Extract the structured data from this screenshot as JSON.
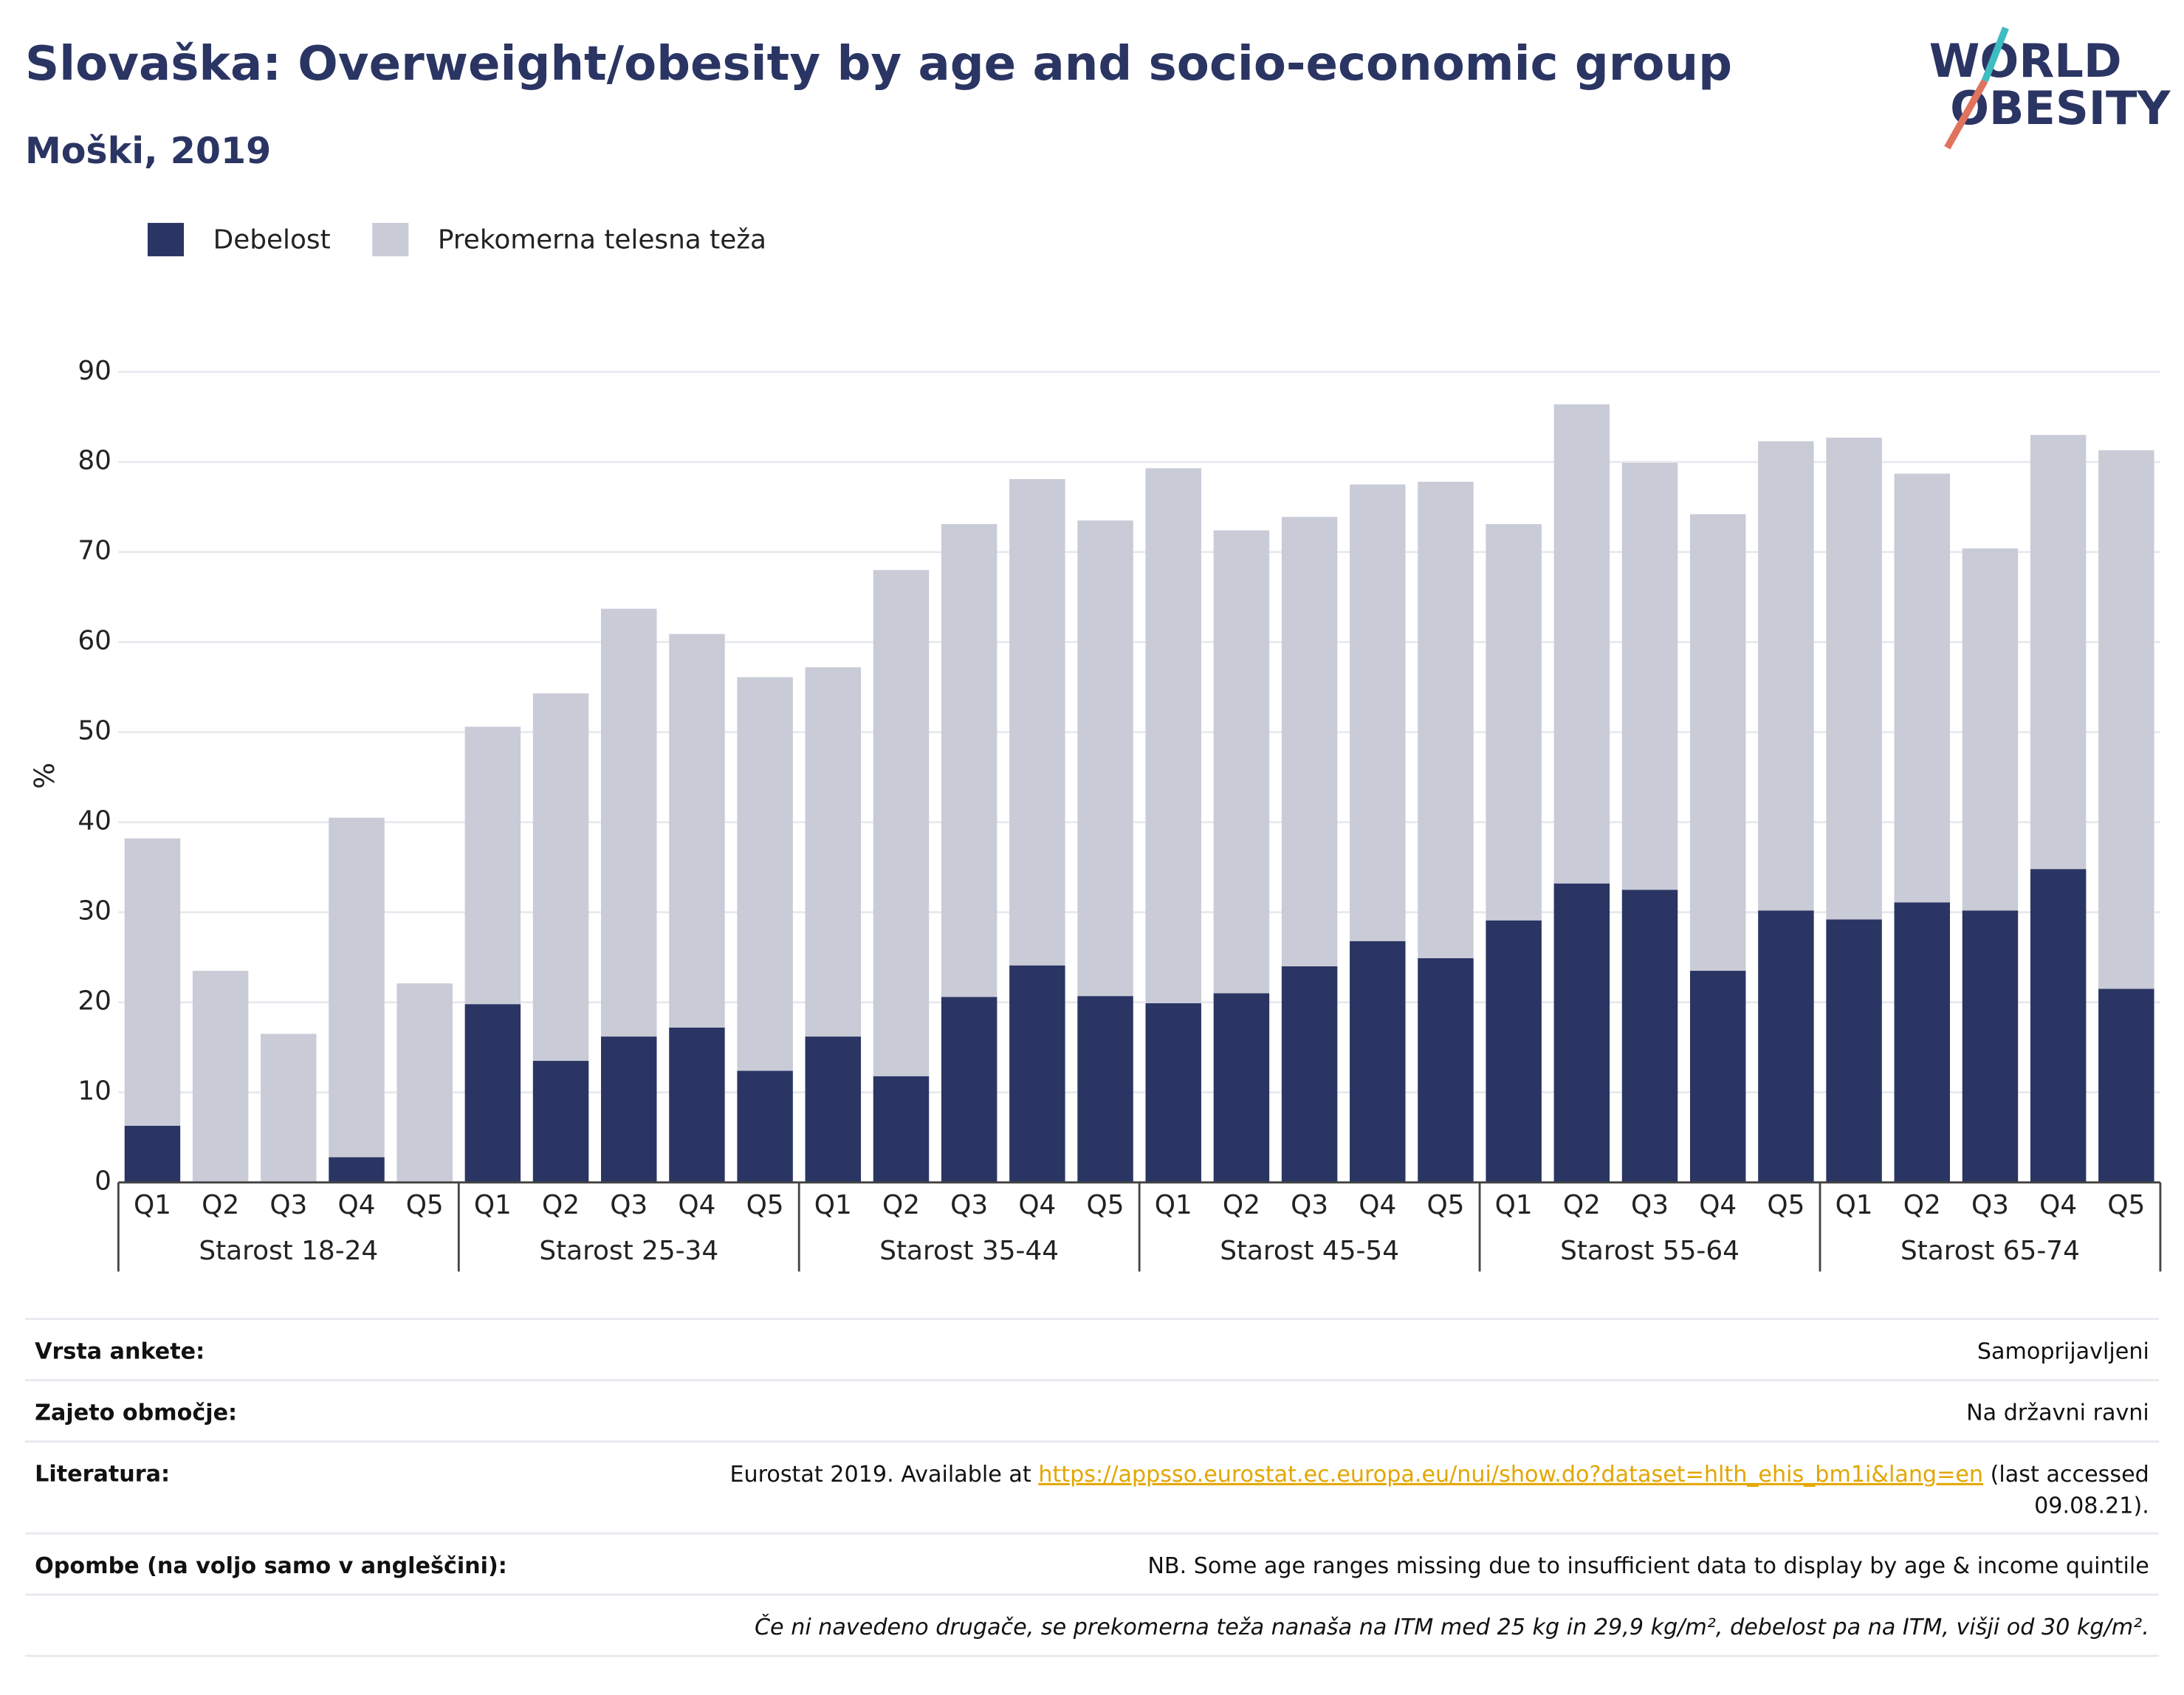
{
  "header": {
    "logo_1": "WORLD",
    "logo_2": "OBESITY"
  },
  "chart_data": {
    "type": "stacked-bar",
    "title": "Slovaška: Overweight/obesity by age and socio-economic group",
    "subtitle": "Moški, 2019",
    "y_label": "%",
    "groups": [
      "Starost 18-24",
      "Starost 25-34",
      "Starost 35-44",
      "Starost 45-54",
      "Starost 55-64",
      "Starost 65-74"
    ],
    "categories": [
      "Q1",
      "Q2",
      "Q3",
      "Q4",
      "Q5",
      "Q1",
      "Q2",
      "Q3",
      "Q4",
      "Q5",
      "Q1",
      "Q2",
      "Q3",
      "Q4",
      "Q5",
      "Q1",
      "Q2",
      "Q3",
      "Q4",
      "Q5",
      "Q1",
      "Q2",
      "Q3",
      "Q4",
      "Q5",
      "Q1",
      "Q2",
      "Q3",
      "Q4",
      "Q5"
    ],
    "series": [
      {
        "name": "Debelost",
        "color": "#2a3563",
        "values": [
          6.3,
          null,
          null,
          2.8,
          null,
          19.8,
          13.5,
          16.2,
          17.2,
          12.4,
          16.2,
          11.8,
          20.6,
          24.1,
          20.7,
          19.9,
          21.0,
          24.0,
          26.8,
          24.9,
          29.1,
          33.2,
          32.5,
          23.5,
          30.2,
          29.2,
          31.1,
          30.2,
          34.8,
          21.5
        ]
      },
      {
        "name": "Prekomerna telesna teža",
        "color": "#c9cbd7",
        "values": [
          31.9,
          23.5,
          16.5,
          37.7,
          22.1,
          30.8,
          40.8,
          47.5,
          43.7,
          43.7,
          41.0,
          56.2,
          52.5,
          54.0,
          52.8,
          59.4,
          51.4,
          49.9,
          50.7,
          52.9,
          44.0,
          53.2,
          47.4,
          50.7,
          52.1,
          53.5,
          47.6,
          40.2,
          48.2,
          59.8
        ]
      }
    ],
    "ylim": [
      0,
      90
    ],
    "yticks": [
      0,
      10,
      20,
      30,
      40,
      50,
      60,
      70,
      80,
      90
    ],
    "grid": true,
    "legend": "top-left"
  },
  "table": {
    "rows": [
      [
        "Vrsta ankete:",
        "Samoprijavljeni"
      ],
      [
        "Zajeto območje:",
        "Na državni ravni"
      ],
      [
        "Literatura:",
        {
          "text": "Eurostat 2019. Available at",
          "link": "https://appsso.eurostat.ec.europa.eu/nui/show.do?dataset=hlth_ehis_bm1i&lang=en",
          "after": "(last accessed",
          "after_2": "09.08.21)."
        }
      ],
      [
        "Opombe (na voljo samo v angleščini):",
        "NB. Some age ranges missing due to insufficient data to display by age & income quintile"
      ]
    ],
    "note": "Če ni navedeno drugače, se prekomerna teža nanaša na ITM med 25 kg in 29,9 kg/m², debelost pa na ITM, višji od 30 kg/m²."
  }
}
